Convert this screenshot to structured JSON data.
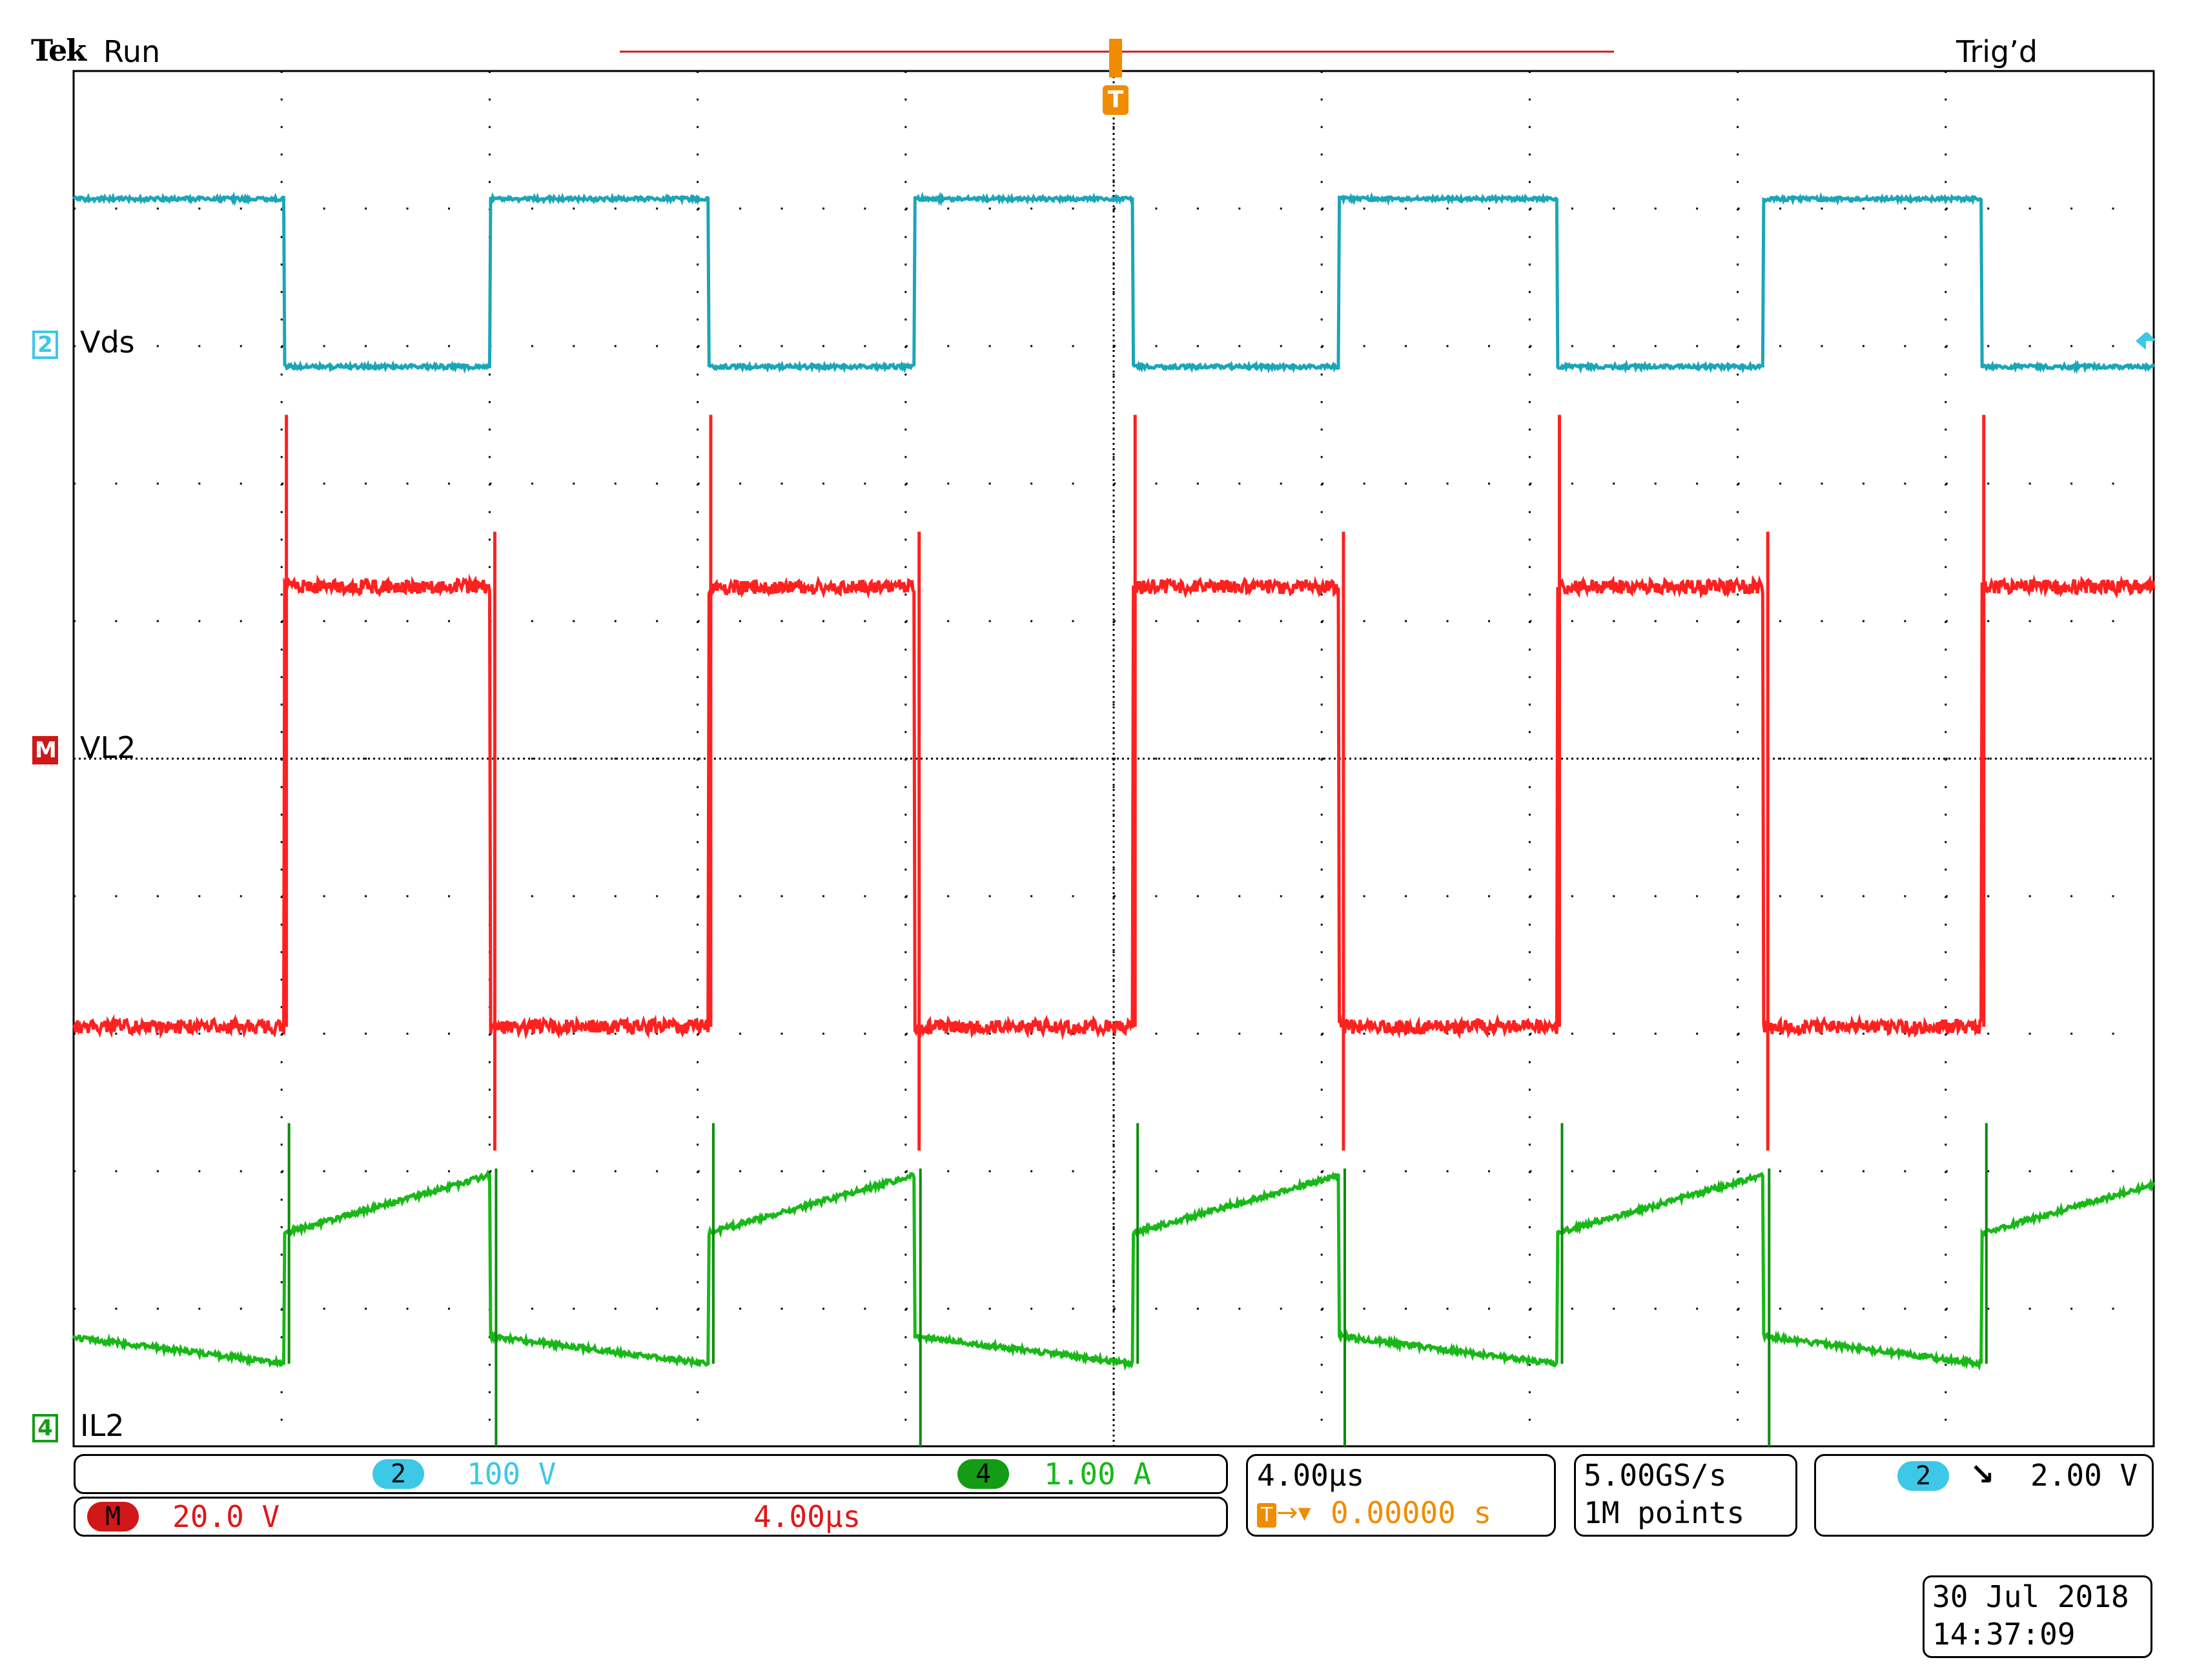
{
  "header": {
    "brand": "Tek",
    "run_state": "Run",
    "trigger_state": "Trig’d",
    "trigger_marker": "T"
  },
  "channels": [
    {
      "id": "2",
      "label": "Vds",
      "color": "#1aa6b7",
      "marker_color": "#3cc8e6"
    },
    {
      "id": "M",
      "label": "VL2",
      "color": "#ff2020",
      "marker_color": "#d01818"
    },
    {
      "id": "4",
      "label": "IL2",
      "color": "#18b818",
      "marker_color": "#149c14"
    }
  ],
  "readouts": {
    "ch2_badge": "2",
    "ch2_scale": "100 V",
    "ch4_badge": "4",
    "ch4_scale": "1.00 A",
    "math_badge": "M",
    "math_scale": "20.0 V",
    "math_timebase": "4.00µs",
    "horizontal_scale": "4.00µs",
    "trigger_position": "0.00000 s",
    "sample_rate": "5.00GS/s",
    "record_length": "1M points",
    "trigger_source_badge": "2",
    "trigger_level": "2.00 V",
    "date": "30 Jul  2018",
    "time": "14:37:09"
  },
  "colors": {
    "ch2": "#1aa6b7",
    "math": "#ff2020",
    "ch4": "#18b818",
    "trigger": "#f08c00",
    "grid": "#000000"
  },
  "chart_data": {
    "type": "line",
    "x_unit": "µs",
    "divisions": {
      "horizontal": 10,
      "vertical": 10
    },
    "period_us": 8.16,
    "x_range_us": [
      -20,
      20
    ],
    "series": [
      {
        "name": "Vds",
        "scale": "100 V",
        "high_div": 4.07,
        "low_div": 2.85
      },
      {
        "name": "VL2",
        "scale": "20.0 V",
        "high_div": 1.25,
        "low_div": -1.95
      },
      {
        "name": "IL2",
        "scale": "1.00 A",
        "on_start_div": -3.45,
        "on_end_div": -3.03,
        "off_start_div": -4.2,
        "off_end_div": -4.4
      }
    ]
  }
}
